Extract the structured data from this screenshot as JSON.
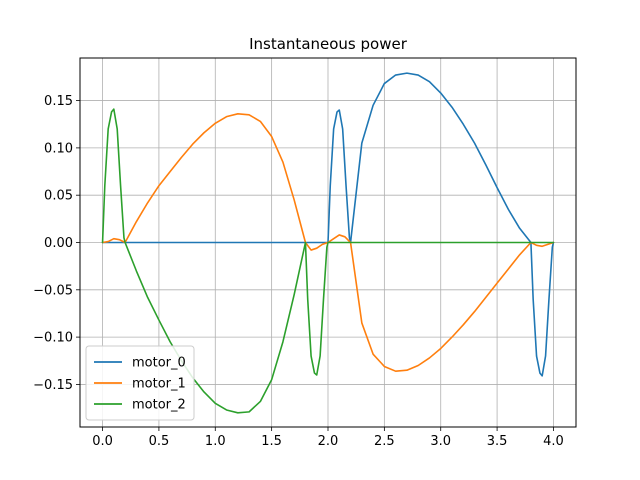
{
  "chart_data": {
    "type": "line",
    "title": "Instantaneous power",
    "xlabel": "",
    "ylabel": "",
    "xlim": [
      -0.2,
      4.2
    ],
    "ylim": [
      -0.195,
      0.195
    ],
    "xticks": [
      0.0,
      0.5,
      1.0,
      1.5,
      2.0,
      2.5,
      3.0,
      3.5,
      4.0
    ],
    "xtick_labels": [
      "0.0",
      "0.5",
      "1.0",
      "1.5",
      "2.0",
      "2.5",
      "3.0",
      "3.5",
      "4.0"
    ],
    "yticks": [
      -0.15,
      -0.1,
      -0.05,
      0.0,
      0.05,
      0.1,
      0.15
    ],
    "ytick_labels": [
      "−0.15",
      "−0.10",
      "−0.05",
      "0.00",
      "0.05",
      "0.10",
      "0.15"
    ],
    "grid": true,
    "legend_position": "lower-left",
    "series": [
      {
        "name": "motor_0",
        "color": "#1f77b4",
        "x": [
          0.0,
          2.0,
          2.02,
          2.05,
          2.08,
          2.1,
          2.13,
          2.16,
          2.19,
          2.2,
          2.3,
          2.4,
          2.5,
          2.6,
          2.7,
          2.8,
          2.9,
          3.0,
          3.1,
          3.2,
          3.3,
          3.4,
          3.5,
          3.6,
          3.7,
          3.8,
          3.82,
          3.85,
          3.88,
          3.9,
          3.93,
          3.96,
          3.99,
          4.0
        ],
        "y": [
          0.0,
          0.0,
          0.06,
          0.12,
          0.138,
          0.14,
          0.12,
          0.06,
          0.005,
          0.0,
          0.105,
          0.145,
          0.168,
          0.177,
          0.179,
          0.177,
          0.17,
          0.158,
          0.143,
          0.125,
          0.105,
          0.082,
          0.058,
          0.035,
          0.015,
          0.0,
          -0.06,
          -0.12,
          -0.138,
          -0.141,
          -0.12,
          -0.06,
          -0.005,
          0.0
        ]
      },
      {
        "name": "motor_1",
        "color": "#ff7f0e",
        "x": [
          0.0,
          0.05,
          0.1,
          0.15,
          0.2,
          0.3,
          0.4,
          0.5,
          0.6,
          0.7,
          0.8,
          0.9,
          1.0,
          1.1,
          1.2,
          1.3,
          1.4,
          1.5,
          1.6,
          1.7,
          1.8,
          1.85,
          1.9,
          1.95,
          2.0,
          2.05,
          2.1,
          2.15,
          2.2,
          2.3,
          2.4,
          2.5,
          2.6,
          2.7,
          2.8,
          2.9,
          3.0,
          3.1,
          3.2,
          3.3,
          3.4,
          3.5,
          3.6,
          3.7,
          3.8,
          3.85,
          3.9,
          3.95,
          4.0
        ],
        "y": [
          0.0,
          0.001,
          0.004,
          0.003,
          0.0,
          0.022,
          0.042,
          0.06,
          0.075,
          0.09,
          0.104,
          0.116,
          0.126,
          0.133,
          0.136,
          0.135,
          0.128,
          0.112,
          0.085,
          0.045,
          0.0,
          -0.008,
          -0.006,
          -0.002,
          0.0,
          0.004,
          0.008,
          0.006,
          0.0,
          -0.085,
          -0.118,
          -0.131,
          -0.136,
          -0.135,
          -0.13,
          -0.122,
          -0.112,
          -0.1,
          -0.087,
          -0.073,
          -0.058,
          -0.043,
          -0.028,
          -0.013,
          0.0,
          -0.003,
          -0.004,
          -0.002,
          0.0
        ]
      },
      {
        "name": "motor_2",
        "color": "#2ca02c",
        "x": [
          0.0,
          0.02,
          0.05,
          0.08,
          0.1,
          0.13,
          0.16,
          0.19,
          0.2,
          0.3,
          0.4,
          0.5,
          0.6,
          0.7,
          0.8,
          0.9,
          1.0,
          1.1,
          1.2,
          1.3,
          1.4,
          1.5,
          1.6,
          1.7,
          1.8,
          1.82,
          1.85,
          1.88,
          1.9,
          1.93,
          1.96,
          1.99,
          2.0,
          4.0
        ],
        "y": [
          0.0,
          0.06,
          0.12,
          0.138,
          0.141,
          0.12,
          0.06,
          0.005,
          0.0,
          -0.03,
          -0.058,
          -0.082,
          -0.105,
          -0.125,
          -0.143,
          -0.158,
          -0.17,
          -0.177,
          -0.18,
          -0.179,
          -0.168,
          -0.145,
          -0.105,
          -0.055,
          0.0,
          -0.06,
          -0.12,
          -0.138,
          -0.14,
          -0.12,
          -0.06,
          -0.005,
          0.0,
          0.0
        ]
      }
    ]
  }
}
